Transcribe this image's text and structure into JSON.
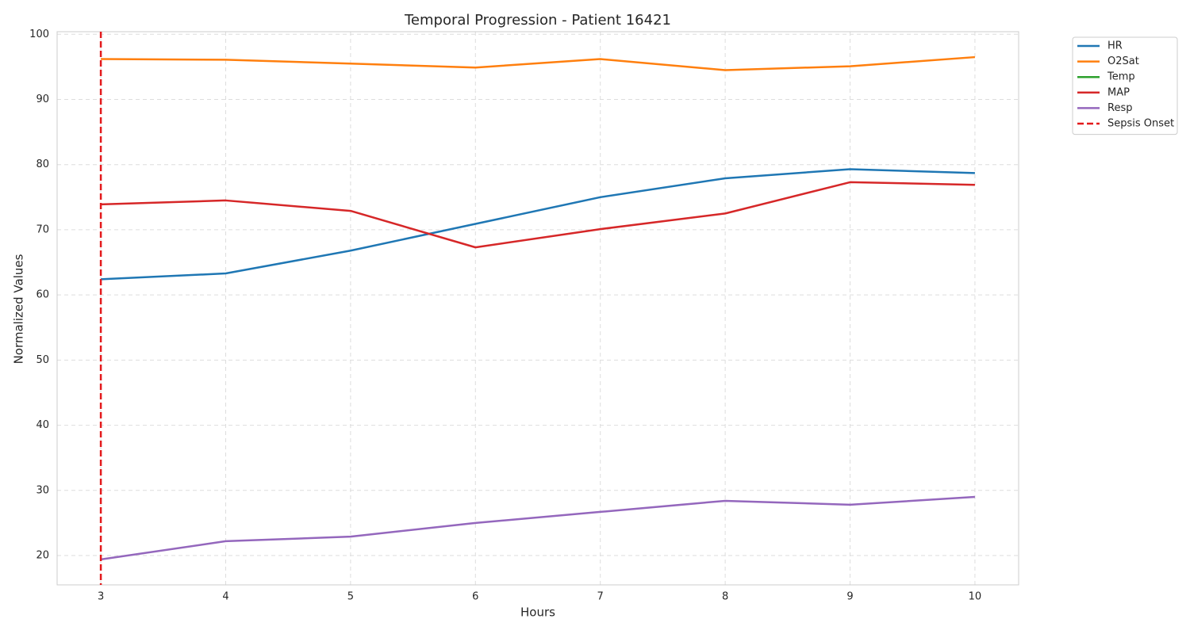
{
  "chart_data": {
    "type": "line",
    "title": "Temporal Progression - Patient 16421",
    "x_label": "Hours",
    "y_label": "Normalized Values",
    "x": [
      3,
      4,
      5,
      6,
      7,
      8,
      9,
      10
    ],
    "series": [
      {
        "name": "HR",
        "color": "#1f77b4",
        "values": [
          62.4,
          63.3,
          66.8,
          70.9,
          75.0,
          77.9,
          79.3,
          78.7
        ]
      },
      {
        "name": "O2Sat",
        "color": "#ff7f0e",
        "values": [
          96.2,
          96.1,
          95.5,
          94.9,
          96.2,
          94.5,
          95.1,
          96.5
        ]
      },
      {
        "name": "Temp",
        "color": "#2ca02c",
        "values": [
          null,
          null,
          null,
          null,
          null,
          null,
          null,
          null
        ]
      },
      {
        "name": "MAP",
        "color": "#d62728",
        "values": [
          73.9,
          74.5,
          72.9,
          67.3,
          70.1,
          72.5,
          77.3,
          76.9
        ]
      },
      {
        "name": "Resp",
        "color": "#9467bd",
        "values": [
          19.4,
          22.2,
          22.9,
          25.0,
          26.7,
          28.4,
          27.8,
          29.0
        ]
      }
    ],
    "vline": {
      "x": 3,
      "label": "Sepsis Onset",
      "color": "#e31a1c"
    },
    "xlim": [
      2.65,
      10.35
    ],
    "xticks": [
      3,
      4,
      5,
      6,
      7,
      8,
      9,
      10
    ],
    "ylim": [
      15.5,
      100.4
    ],
    "yticks": [
      20,
      30,
      40,
      50,
      60,
      70,
      80,
      90,
      100
    ],
    "grid": true,
    "legend": "outside upper right"
  }
}
